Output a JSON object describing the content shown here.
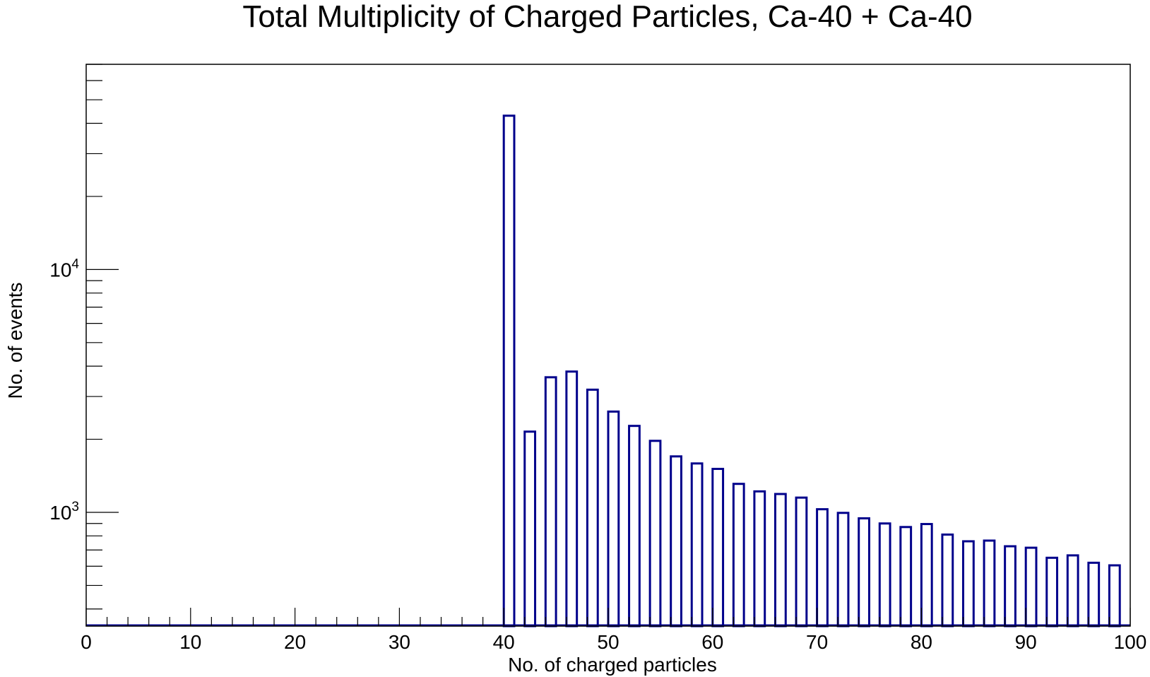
{
  "chart_data": {
    "type": "bar",
    "title": "Total Multiplicity of Charged Particles, Ca-40 + Ca-40",
    "xlabel": "No. of charged particles",
    "ylabel": "No. of events",
    "xlim": [
      0,
      100
    ],
    "ylim": [
      340,
      70000
    ],
    "yscale": "log",
    "grid": false,
    "bar_color": "#00008b",
    "x_tick_labels": [
      "0",
      "10",
      "20",
      "30",
      "40",
      "50",
      "60",
      "70",
      "80",
      "90",
      "100"
    ],
    "y_tick_labels": [
      {
        "base": "10",
        "exp": "3",
        "value": 1000
      },
      {
        "base": "10",
        "exp": "4",
        "value": 10000
      }
    ],
    "bins": [
      {
        "x0": 40,
        "x1": 41,
        "value": 43000
      },
      {
        "x0": 42,
        "x1": 43,
        "value": 2150
      },
      {
        "x0": 44,
        "x1": 45,
        "value": 3600
      },
      {
        "x0": 46,
        "x1": 47,
        "value": 3800
      },
      {
        "x0": 48,
        "x1": 49,
        "value": 3200
      },
      {
        "x0": 50,
        "x1": 51,
        "value": 2600
      },
      {
        "x0": 52,
        "x1": 53,
        "value": 2270
      },
      {
        "x0": 54,
        "x1": 55,
        "value": 1970
      },
      {
        "x0": 56,
        "x1": 57,
        "value": 1700
      },
      {
        "x0": 58,
        "x1": 59,
        "value": 1590
      },
      {
        "x0": 60,
        "x1": 61,
        "value": 1510
      },
      {
        "x0": 62,
        "x1": 63,
        "value": 1310
      },
      {
        "x0": 64,
        "x1": 65,
        "value": 1220
      },
      {
        "x0": 66,
        "x1": 67,
        "value": 1190
      },
      {
        "x0": 68,
        "x1": 69,
        "value": 1150
      },
      {
        "x0": 70,
        "x1": 71,
        "value": 1030
      },
      {
        "x0": 72,
        "x1": 73,
        "value": 995
      },
      {
        "x0": 74,
        "x1": 75,
        "value": 945
      },
      {
        "x0": 76,
        "x1": 77,
        "value": 900
      },
      {
        "x0": 78,
        "x1": 79,
        "value": 870
      },
      {
        "x0": 80,
        "x1": 81,
        "value": 895
      },
      {
        "x0": 82,
        "x1": 83,
        "value": 810
      },
      {
        "x0": 84,
        "x1": 85,
        "value": 760
      },
      {
        "x0": 86,
        "x1": 87,
        "value": 765
      },
      {
        "x0": 88,
        "x1": 89,
        "value": 725
      },
      {
        "x0": 90,
        "x1": 91,
        "value": 715
      },
      {
        "x0": 92,
        "x1": 93,
        "value": 650
      },
      {
        "x0": 94,
        "x1": 95,
        "value": 665
      },
      {
        "x0": 96,
        "x1": 97,
        "value": 620
      },
      {
        "x0": 98,
        "x1": 99,
        "value": 605
      }
    ]
  }
}
